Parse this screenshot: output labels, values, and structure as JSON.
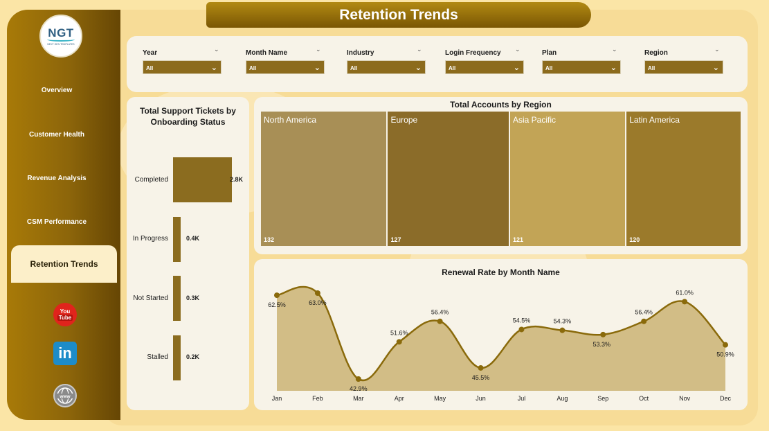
{
  "header": {
    "title": "Retention Trends"
  },
  "logo": {
    "text": "NGT",
    "subtext": "NEXT GEN TEMPLATES"
  },
  "sidebar": {
    "items": [
      {
        "label": "Overview"
      },
      {
        "label": "Customer Health"
      },
      {
        "label": "Revenue Analysis"
      },
      {
        "label": "CSM Performance"
      },
      {
        "label": "Retention Trends",
        "active": true
      }
    ],
    "social": [
      {
        "name": "youtube-icon",
        "line1": "You",
        "line2": "Tube"
      },
      {
        "name": "linkedin-icon",
        "text": "in"
      },
      {
        "name": "website-icon",
        "text": "www"
      }
    ]
  },
  "filters": [
    {
      "label": "Year",
      "value": "All"
    },
    {
      "label": "Month Name",
      "value": "All"
    },
    {
      "label": "Industry",
      "value": "All"
    },
    {
      "label": "Login Frequency",
      "value": "All"
    },
    {
      "label": "Plan",
      "value": "All"
    },
    {
      "label": "Region",
      "value": "All"
    }
  ],
  "colors": {
    "accent": "#8b6c1f",
    "line": "#8a6a0b",
    "area": "#d2bd86",
    "sidebar_dark": "#664604",
    "sidebar_light": "#a87a08"
  },
  "chart_data": [
    {
      "type": "bar",
      "orientation": "horizontal",
      "title": "Total Support Tickets by Onboarding Status",
      "categories": [
        "Completed",
        "In Progress",
        "Not Started",
        "Stalled"
      ],
      "values": [
        2800,
        400,
        300,
        200
      ],
      "labels": [
        "2.8K",
        "0.4K",
        "0.3K",
        "0.2K"
      ]
    },
    {
      "type": "treemap",
      "title": "Total Accounts by Region",
      "categories": [
        "North America",
        "Europe",
        "Asia Pacific",
        "Latin America"
      ],
      "values": [
        132,
        127,
        121,
        120
      ],
      "colors": [
        "#a88f56",
        "#8b6c29",
        "#c2a456",
        "#9b7a2b"
      ]
    },
    {
      "type": "area",
      "title": "Renewal Rate by Month Name",
      "categories": [
        "Jan",
        "Feb",
        "Mar",
        "Apr",
        "May",
        "Jun",
        "Jul",
        "Aug",
        "Sep",
        "Oct",
        "Nov",
        "Dec"
      ],
      "values": [
        62.5,
        63.0,
        42.9,
        51.6,
        56.4,
        45.5,
        54.5,
        54.3,
        53.3,
        56.4,
        61.0,
        50.9
      ],
      "labels": [
        "62.5%",
        "63.0%",
        "42.9%",
        "51.6%",
        "56.4%",
        "45.5%",
        "54.5%",
        "54.3%",
        "53.3%",
        "56.4%",
        "61.0%",
        "50.9%"
      ],
      "unit": "%"
    }
  ]
}
